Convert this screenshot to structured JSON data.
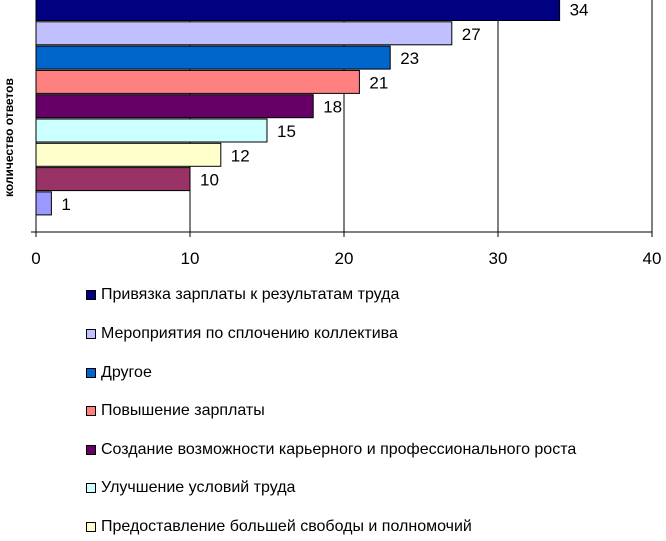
{
  "chart_data": {
    "type": "bar",
    "orientation": "horizontal",
    "ylabel": "количество ответов",
    "xlim": [
      0,
      40
    ],
    "xticks": [
      "0",
      "10",
      "20",
      "30",
      "40"
    ],
    "grid": true,
    "legend_position": "bottom",
    "series": [
      {
        "name": "Привязка зарплаты к результатам труда",
        "value": 34,
        "label": "34",
        "color": "#000080"
      },
      {
        "name": "Мероприятия по сплочению коллектива",
        "value": 27,
        "label": "27",
        "color": "#c0c0ff"
      },
      {
        "name": "Другое",
        "value": 23,
        "label": "23",
        "color": "#0066cc"
      },
      {
        "name": "Повышение зарплаты",
        "value": 21,
        "label": "21",
        "color": "#ff8080"
      },
      {
        "name": "Создание возможности карьерного и профессионального роста",
        "value": 18,
        "label": "18",
        "color": "#660066"
      },
      {
        "name": "Улучшение условий труда",
        "value": 15,
        "label": "15",
        "color": "#ccffff"
      },
      {
        "name": "Предоставление большей свободы и полномочий",
        "value": 12,
        "label": "12",
        "color": "#ffffcc"
      },
      {
        "name": "",
        "value": 10,
        "label": "10",
        "color": "#993366"
      },
      {
        "name": "",
        "value": 1,
        "label": "1",
        "color": "#9999ff"
      }
    ]
  }
}
